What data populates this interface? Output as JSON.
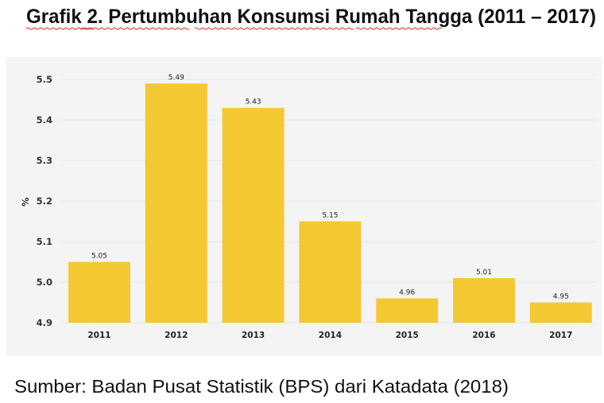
{
  "title": "Grafik 2. Pertumbuhan Konsumsi Rumah Tangga (2011 – 2017)",
  "source": "Sumber: Badan Pusat Statistik (BPS) dari Katadata (2018)",
  "chart_data": {
    "type": "bar",
    "categories": [
      "2011",
      "2012",
      "2013",
      "2014",
      "2015",
      "2016",
      "2017"
    ],
    "values": [
      5.05,
      5.49,
      5.43,
      5.15,
      4.96,
      5.01,
      4.95
    ],
    "data_labels": [
      "5.05",
      "5.49",
      "5.43",
      "5.15",
      "4.96",
      "5.01",
      "4.95"
    ],
    "title": "",
    "xlabel": "",
    "ylabel": "%",
    "ylim": [
      4.9,
      5.5
    ],
    "yticks": [
      "4.9",
      "5.0",
      "5.1",
      "5.2",
      "5.3",
      "5.4",
      "5.5"
    ],
    "grid": true,
    "bar_color": "#f4c832",
    "background_color": "#f4f4f4"
  }
}
